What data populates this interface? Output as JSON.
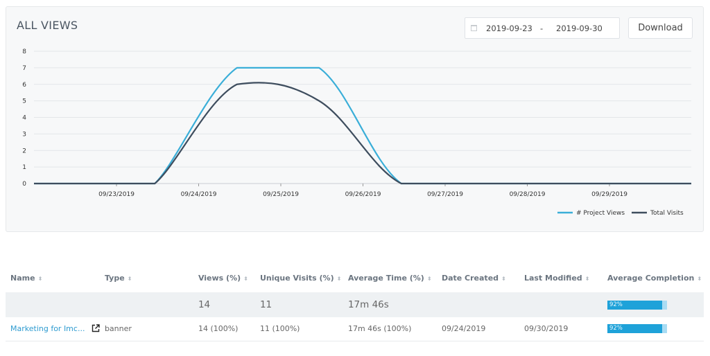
{
  "chart_panel": {
    "title": "ALL VIEWS",
    "date_from": "2019-09-23",
    "date_separator": "-",
    "date_to": "2019-09-30",
    "download_label": "Download",
    "calendar_icon": "calendar-icon"
  },
  "chart_data": {
    "type": "line",
    "x": [
      "09/23/2019",
      "09/24/2019",
      "09/25/2019",
      "09/26/2019",
      "09/27/2019",
      "09/28/2019",
      "09/29/2019"
    ],
    "x_tick_labels": [
      "09/23/2019",
      "09/24/2019",
      "09/25/2019",
      "09/26/2019",
      "09/27/2019",
      "09/28/2019",
      "09/29/2019"
    ],
    "y_tick_labels": [
      "0",
      "1",
      "2",
      "3",
      "4",
      "5",
      "6",
      "7",
      "8"
    ],
    "ylim": [
      0,
      8
    ],
    "grid": true,
    "legend_position": "bottom-right",
    "series": [
      {
        "name": "# Project Views",
        "color": "#3aaed8",
        "values": [
          0,
          7,
          7,
          0,
          0,
          0,
          0
        ]
      },
      {
        "name": "Total Visits",
        "color": "#3e4d5e",
        "values": [
          0,
          6,
          5,
          0,
          0,
          0,
          0
        ]
      }
    ]
  },
  "table": {
    "columns": [
      "Name",
      "Type",
      "Views (%)",
      "Unique Visits (%)",
      "Average Time (%)",
      "Date Created",
      "Last Modified",
      "Average Completion"
    ],
    "sort_icon": "sort-icon",
    "summary": {
      "name": "",
      "type": "",
      "views": "14",
      "unique_visits": "11",
      "average_time": "17m 46s",
      "date_created": "",
      "last_modified": "",
      "completion_label": "92%",
      "completion_value": 0.92
    },
    "rows": [
      {
        "name": "Marketing for Imc...",
        "name_icon": "external-link-icon",
        "type": "banner",
        "views": "14 (100%)",
        "unique_visits": "11 (100%)",
        "average_time": "17m 46s (100%)",
        "date_created": "09/24/2019",
        "last_modified": "09/30/2019",
        "completion_label": "92%",
        "completion_value": 0.92
      }
    ],
    "colors": {
      "link": "#2e9bd0",
      "progress_fill": "#1ea2d9",
      "progress_track": "#a9dcf3"
    }
  }
}
